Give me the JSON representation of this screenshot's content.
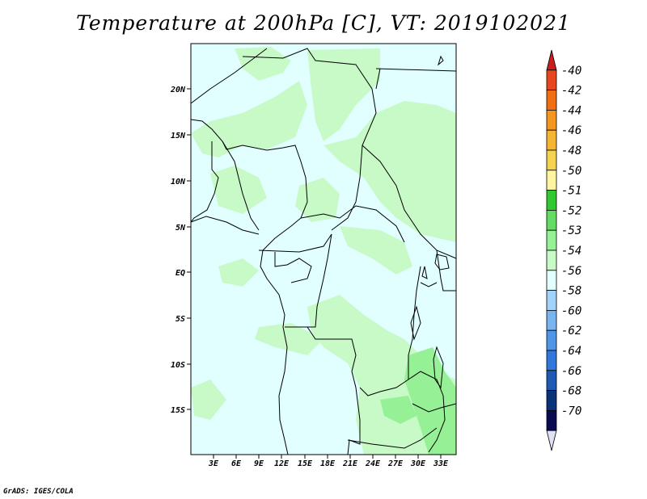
{
  "title": "Temperature at 200hPa [C], VT: 2019102021",
  "credit": "GrADS: IGES/COLA",
  "axes": {
    "lat_labels": [
      "20N",
      "15N",
      "10N",
      "5N",
      "EQ",
      "5S",
      "10S",
      "15S"
    ],
    "lon_labels": [
      "3E",
      "6E",
      "9E",
      "12E",
      "15E",
      "18E",
      "21E",
      "24E",
      "27E",
      "30E",
      "33E"
    ]
  },
  "colorbar": {
    "labels": [
      "-40",
      "-42",
      "-44",
      "-46",
      "-48",
      "-50",
      "-51",
      "-52",
      "-53",
      "-54",
      "-56",
      "-58",
      "-60",
      "-62",
      "-64",
      "-66",
      "-68",
      "-70"
    ],
    "colors": [
      "#c81e1e",
      "#e8461e",
      "#f06e14",
      "#f5961e",
      "#f5b432",
      "#f5d250",
      "#fff5a0",
      "#32c832",
      "#64dc64",
      "#96f096",
      "#c8fac8",
      "#e1ffff",
      "#a0d2fa",
      "#78b4f0",
      "#5096e6",
      "#3278dc",
      "#1e5ab4",
      "#0a3278",
      "#0a0a50",
      "#e1e1f5"
    ]
  },
  "field": {
    "background_color": "#e1ffff",
    "shaded_color": "#c8fac8",
    "stronger_color": "#96f096"
  }
}
